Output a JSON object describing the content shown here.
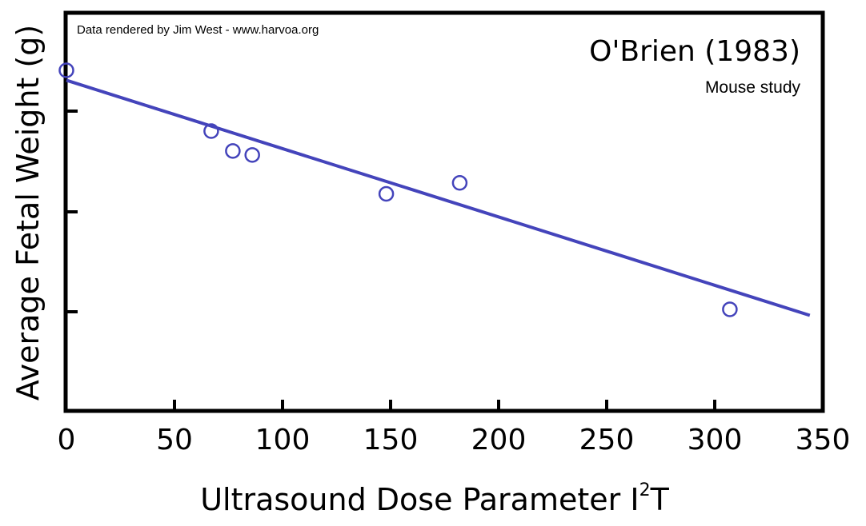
{
  "chart_data": {
    "type": "scatter",
    "title": "O'Brien (1983)",
    "subtitle": "Mouse study",
    "credit": "Data rendered by Jim West - www.harvoa.org",
    "xlabel": "Ultrasound Dose Parameter I",
    "xlabel_superscript": "2",
    "xlabel_suffix": "T",
    "ylabel": "Average Fetal Weight (g)",
    "xlim": [
      0,
      350
    ],
    "x_ticks": [
      0,
      50,
      100,
      150,
      200,
      250,
      300,
      350
    ],
    "y_ticks_labeled": false,
    "grid": false,
    "legend": "none",
    "marker_color": "#4444BB",
    "line_color": "#4444BB",
    "points": [
      {
        "x": 0,
        "y": 1.364
      },
      {
        "x": 67,
        "y": 1.303
      },
      {
        "x": 77,
        "y": 1.283
      },
      {
        "x": 86,
        "y": 1.279
      },
      {
        "x": 148,
        "y": 1.24
      },
      {
        "x": 182,
        "y": 1.251
      },
      {
        "x": 307,
        "y": 1.124
      }
    ],
    "fit_line": {
      "x": [
        0,
        344
      ],
      "y": [
        1.354,
        1.118
      ]
    }
  }
}
